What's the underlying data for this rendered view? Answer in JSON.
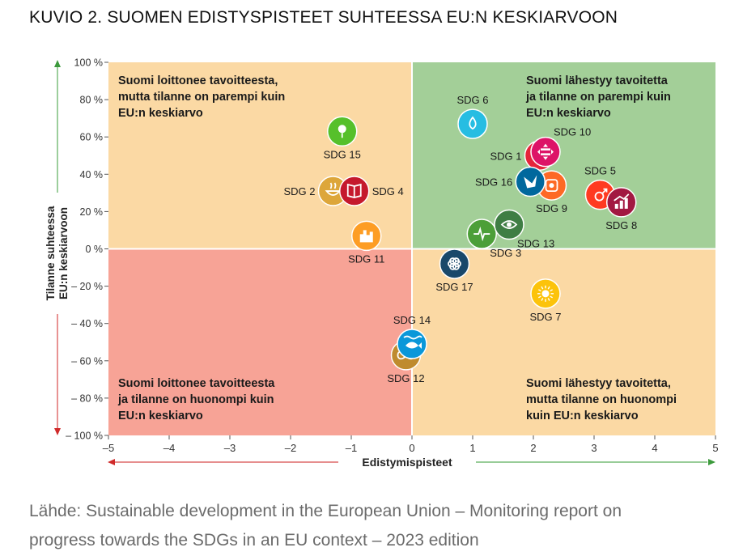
{
  "figure": {
    "title": "KUVIO 2. SUOMEN EDISTYSPISTEET SUHTEESSA EU:N KESKIARVOON",
    "source_line1": "Lähde: Sustainable development in the European Union – Monitoring report on",
    "source_line2": "progress towards the SDGs in an EU context – 2023 edition"
  },
  "chart_data": {
    "type": "scatter",
    "xlabel": "Edistymispisteet",
    "ylabel_line1": "Tilanne suhteessa",
    "ylabel_line2": "EU:n keskiarvoon",
    "xlim": [
      -5,
      5
    ],
    "ylim": [
      -100,
      100
    ],
    "x_ticks": [
      {
        "v": -5,
        "label": "–5"
      },
      {
        "v": -4,
        "label": "–4"
      },
      {
        "v": -3,
        "label": "–3"
      },
      {
        "v": -2,
        "label": "–2"
      },
      {
        "v": -1,
        "label": "–1"
      },
      {
        "v": 0,
        "label": "0"
      },
      {
        "v": 1,
        "label": "1"
      },
      {
        "v": 2,
        "label": "2"
      },
      {
        "v": 3,
        "label": "3"
      },
      {
        "v": 4,
        "label": "4"
      },
      {
        "v": 5,
        "label": "5"
      }
    ],
    "y_ticks": [
      {
        "v": 100,
        "label": "100 %"
      },
      {
        "v": 80,
        "label": "80 %"
      },
      {
        "v": 60,
        "label": "60 %"
      },
      {
        "v": 40,
        "label": "40 %"
      },
      {
        "v": 20,
        "label": "20 %"
      },
      {
        "v": 0,
        "label": "0 %"
      },
      {
        "v": -20,
        "label": "– 20 %"
      },
      {
        "v": -40,
        "label": "– 40 %"
      },
      {
        "v": -60,
        "label": "– 60 %"
      },
      {
        "v": -80,
        "label": "– 80 %"
      },
      {
        "v": -100,
        "label": "– 100 %"
      }
    ],
    "quadrants": [
      {
        "name": "top-left",
        "color": "#fbd9a4",
        "lines": [
          "Suomi loittonee tavoitteesta,",
          "mutta tilanne on parempi kuin",
          "EU:n keskiarvo"
        ]
      },
      {
        "name": "top-right",
        "color": "#a3cf98",
        "lines": [
          "Suomi lähestyy tavoitetta",
          "ja tilanne on parempi kuin",
          "EU:n keskiarvo"
        ]
      },
      {
        "name": "bottom-left",
        "color": "#f7a396",
        "lines": [
          "Suomi loittonee tavoitteesta",
          "ja tilanne on huonompi kuin",
          "EU:n keskiarvo"
        ]
      },
      {
        "name": "bottom-right",
        "color": "#fbd9a4",
        "lines": [
          "Suomi lähestyy tavoitetta,",
          "mutta tilanne on huonompi",
          "kuin EU:n keskiarvo"
        ]
      }
    ],
    "points": [
      {
        "label": "SDG 1",
        "x": 2.1,
        "y": 50,
        "color": "#e5243b",
        "icon": "people-icon",
        "label_pos": "left"
      },
      {
        "label": "SDG 2",
        "x": -1.3,
        "y": 31,
        "color": "#dda63a",
        "icon": "bowl-icon",
        "label_pos": "left"
      },
      {
        "label": "SDG 3",
        "x": 1.15,
        "y": 8,
        "color": "#4c9f38",
        "icon": "heartbeat-icon",
        "label_pos": "below-right"
      },
      {
        "label": "SDG 4",
        "x": -0.95,
        "y": 31,
        "color": "#c5192d",
        "icon": "book-icon",
        "label_pos": "right"
      },
      {
        "label": "SDG 5",
        "x": 3.1,
        "y": 29,
        "color": "#ff3a21",
        "icon": "gender-icon",
        "label_pos": "above"
      },
      {
        "label": "SDG 6",
        "x": 1.0,
        "y": 67,
        "color": "#26bde2",
        "icon": "water-drop-icon",
        "label_pos": "above"
      },
      {
        "label": "SDG 7",
        "x": 2.2,
        "y": -24,
        "color": "#fcc30b",
        "icon": "sun-icon",
        "label_pos": "below"
      },
      {
        "label": "SDG 8",
        "x": 3.45,
        "y": 25,
        "color": "#a21942",
        "icon": "growth-chart-icon",
        "label_pos": "below"
      },
      {
        "label": "SDG 9",
        "x": 2.3,
        "y": 34,
        "color": "#fd6925",
        "icon": "infrastructure-icon",
        "label_pos": "below"
      },
      {
        "label": "SDG 10",
        "x": 2.2,
        "y": 52,
        "color": "#dd1367",
        "icon": "equality-icon",
        "label_pos": "above-right"
      },
      {
        "label": "SDG 11",
        "x": -0.75,
        "y": 7,
        "color": "#fd9d24",
        "icon": "city-icon",
        "label_pos": "below"
      },
      {
        "label": "SDG 12",
        "x": -0.1,
        "y": -57,
        "color": "#bf8b2e",
        "icon": "infinity-icon",
        "label_pos": "below"
      },
      {
        "label": "SDG 13",
        "x": 1.6,
        "y": 13,
        "color": "#3f7e44",
        "icon": "eye-globe-icon",
        "label_pos": "below-right"
      },
      {
        "label": "SDG 14",
        "x": 0.0,
        "y": -51,
        "color": "#0a97d9",
        "icon": "fish-icon",
        "label_pos": "above"
      },
      {
        "label": "SDG 15",
        "x": -1.15,
        "y": 63,
        "color": "#56c02b",
        "icon": "tree-icon",
        "label_pos": "below"
      },
      {
        "label": "SDG 16",
        "x": 1.95,
        "y": 36,
        "color": "#00689d",
        "icon": "dove-icon",
        "label_pos": "left"
      },
      {
        "label": "SDG 17",
        "x": 0.7,
        "y": -8,
        "color": "#19486a",
        "icon": "flower-icon",
        "label_pos": "below"
      }
    ]
  }
}
